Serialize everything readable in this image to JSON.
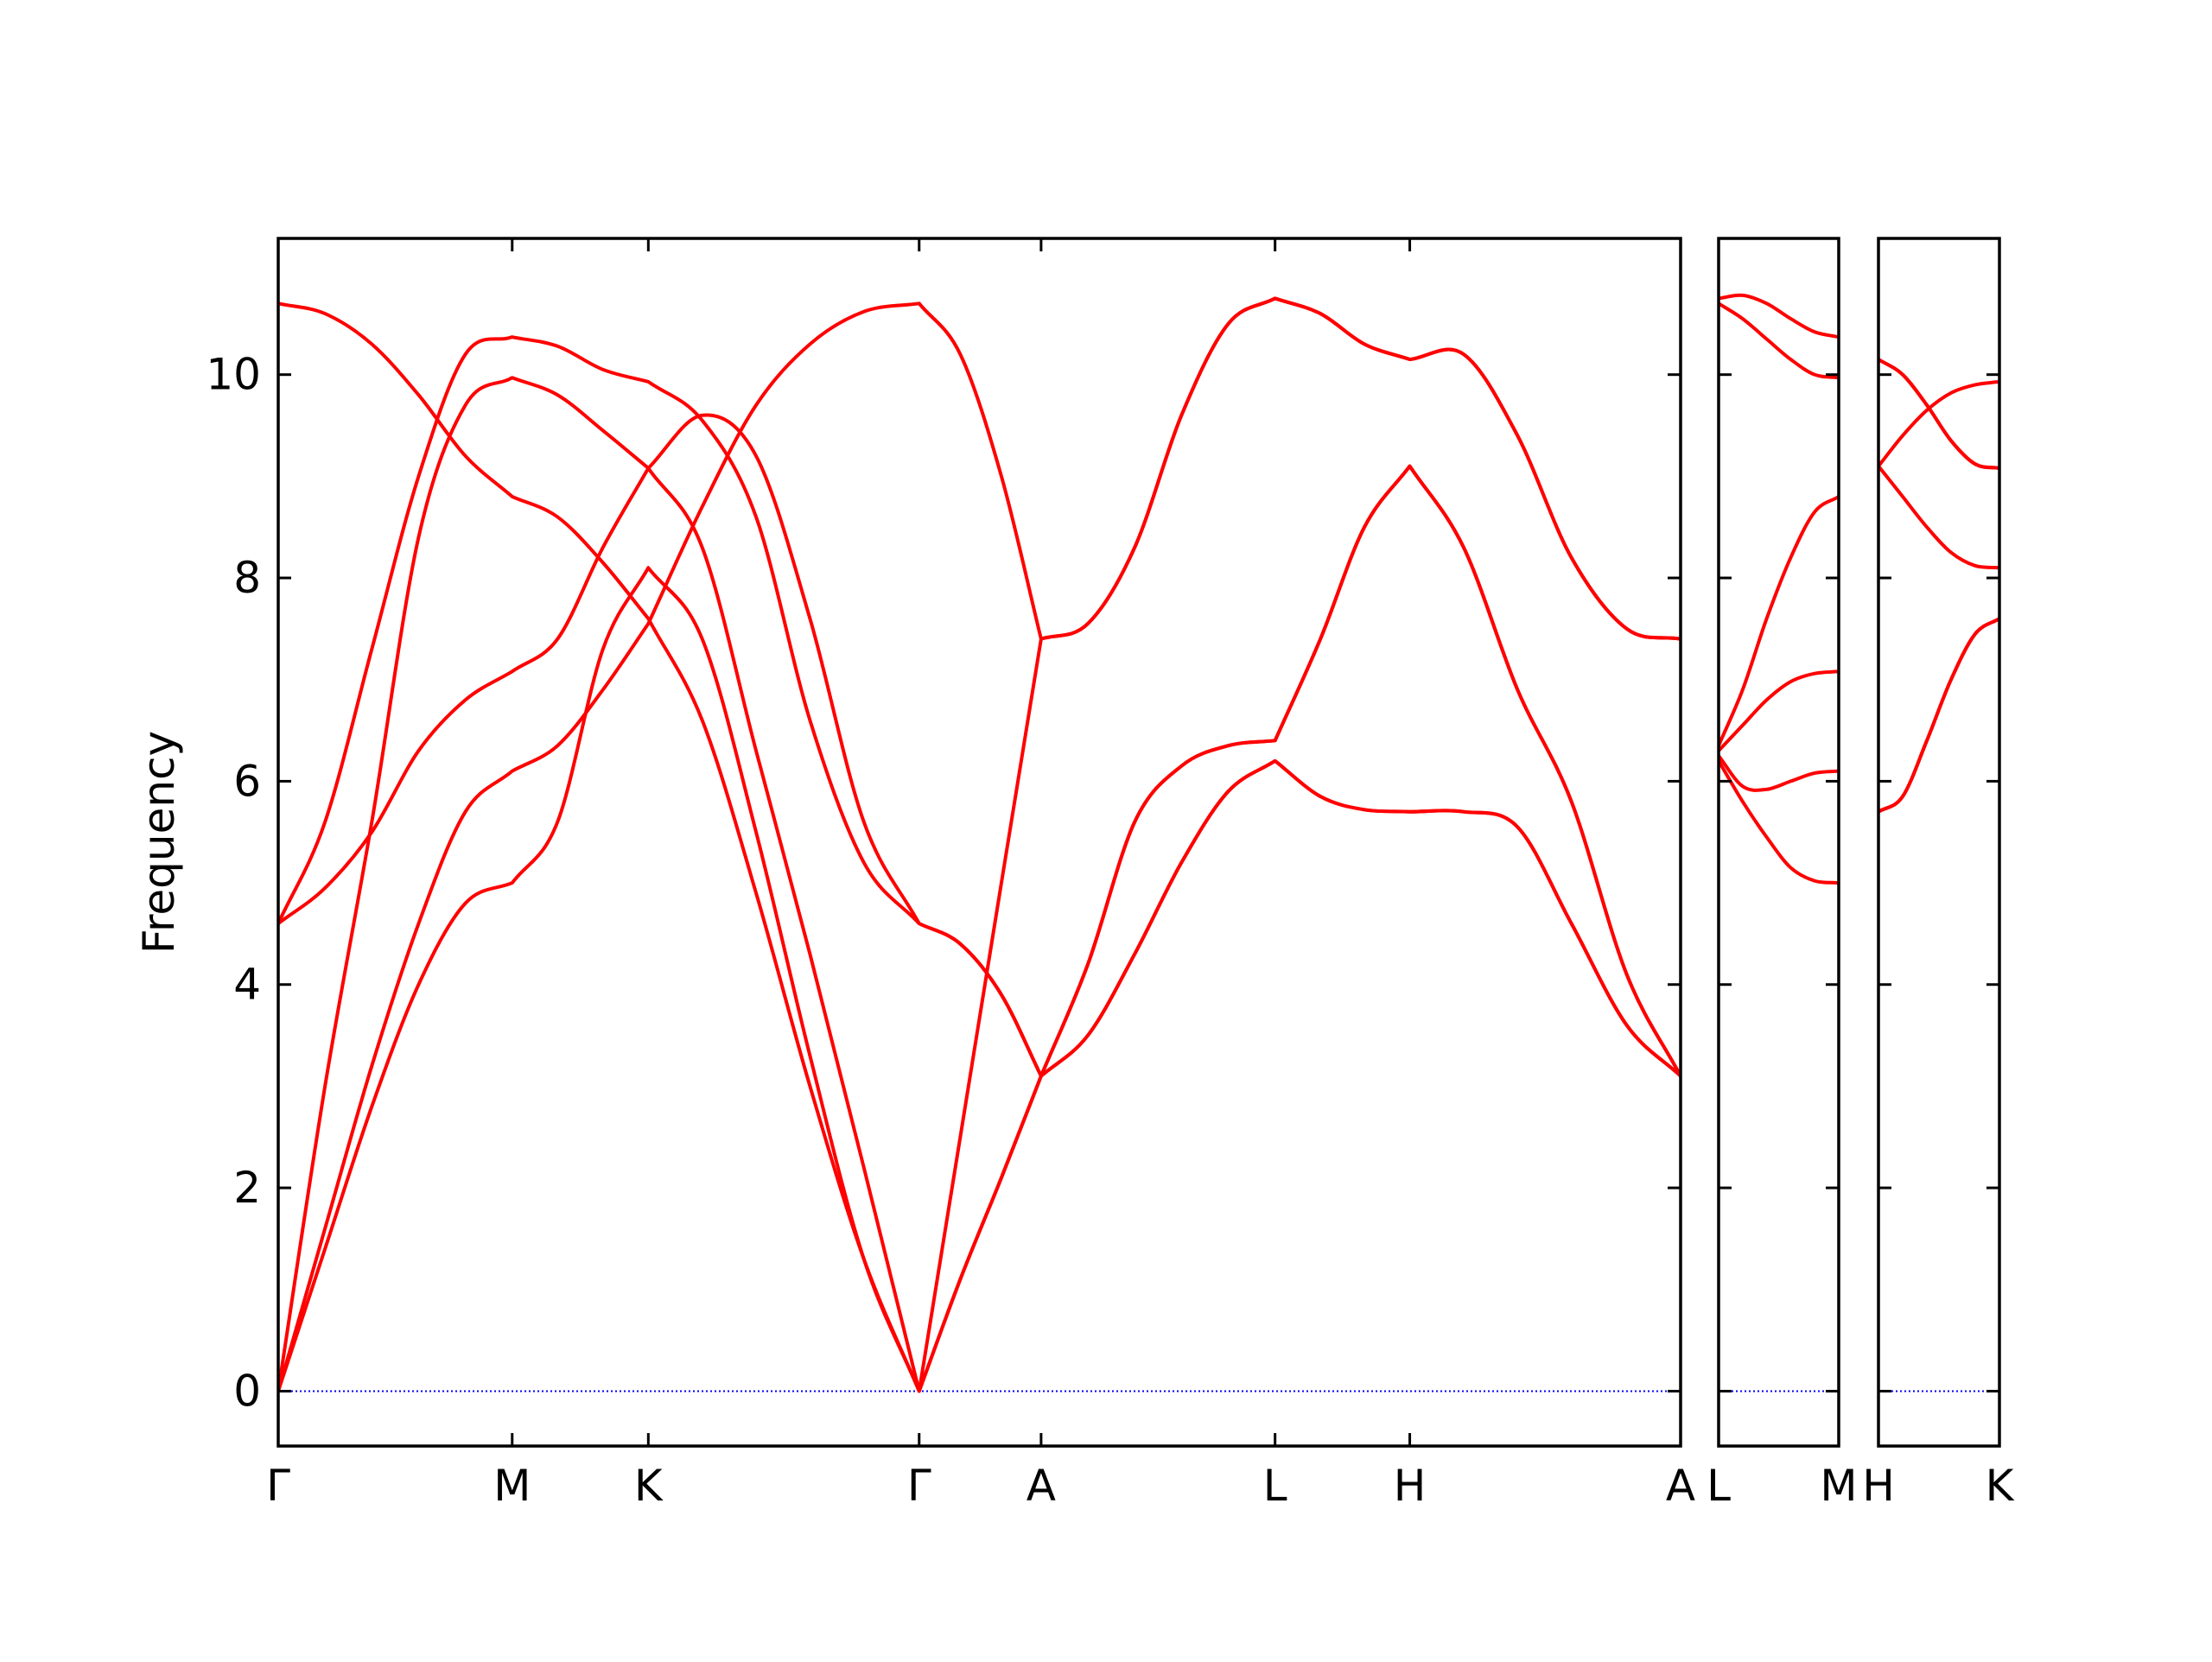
{
  "chart_data": [
    {
      "type": "line",
      "ylabel": "Frequency",
      "show_ytick_labels": true,
      "x": [
        0,
        0.33,
        0.66,
        0.99,
        1.32,
        1.65,
        1.97,
        2.29,
        2.61,
        2.99,
        3.37,
        3.75,
        4.13,
        4.52,
        4.81,
        5.1,
        5.38,
        5.71,
        6.04,
        6.37,
        6.7,
        7.03,
        7.35,
        7.66,
        7.98,
        8.36,
        8.74,
        9.12,
        9.51,
        9.89
      ],
      "xlim": [
        0,
        9.89
      ],
      "xticks": [
        {
          "value": 0,
          "label": "Γ"
        },
        {
          "value": 1.65,
          "label": "M"
        },
        {
          "value": 2.61,
          "label": "K"
        },
        {
          "value": 4.52,
          "label": "Γ"
        },
        {
          "value": 5.38,
          "label": "A"
        },
        {
          "value": 7.03,
          "label": "L"
        },
        {
          "value": 7.98,
          "label": "H"
        },
        {
          "value": 9.89,
          "label": "A"
        }
      ],
      "ylim": [
        -0.54,
        11.34
      ],
      "yticks": [
        0,
        2,
        4,
        6,
        8,
        10
      ],
      "zero_line": 0,
      "zero_line_color": "#0000ff",
      "series": [
        {
          "color": "#ff0000",
          "values": [
            10.7,
            10.6,
            10.3,
            9.8,
            9.2,
            8.8,
            8.6,
            8.15,
            7.6,
            6.6,
            4.9,
            3.0,
            1.3,
            0,
            2.5,
            5.0,
            7.4,
            7.55,
            8.3,
            9.6,
            10.5,
            10.75,
            10.6,
            10.3,
            10.15,
            10.2,
            9.4,
            8.2,
            7.5,
            7.4
          ]
        },
        {
          "color": "#ff0000",
          "values": [
            4.6,
            5.6,
            7.3,
            9.0,
            10.2,
            10.37,
            10.28,
            10.05,
            9.93,
            9.55,
            8.6,
            6.6,
            5.2,
            4.6,
            4.4,
            3.9,
            3.1,
            4.2,
            5.6,
            6.15,
            6.35,
            6.4,
            7.4,
            8.5,
            9.1,
            8.3,
            6.9,
            5.8,
            4.1,
            3.1
          ]
        },
        {
          "color": "#ff0000",
          "values": [
            4.6,
            4.95,
            5.5,
            6.3,
            6.8,
            7.08,
            7.4,
            8.3,
            9.08,
            9.6,
            9.2,
            7.6,
            5.6,
            4.6,
            4.4,
            3.9,
            3.1,
            3.5,
            4.3,
            5.2,
            5.9,
            6.2,
            5.85,
            5.72,
            5.7,
            5.7,
            5.55,
            4.6,
            3.6,
            3.1
          ]
        },
        {
          "color": "#ff0000",
          "values": [
            0,
            3.0,
            5.6,
            8.4,
            9.7,
            9.97,
            9.8,
            9.45,
            9.08,
            8.3,
            6.3,
            4.3,
            2.2,
            0,
            1.1,
            2.1,
            3.1,
            4.2,
            5.6,
            6.15,
            6.35,
            6.4,
            7.4,
            8.5,
            9.1,
            8.3,
            6.9,
            5.8,
            4.1,
            3.1
          ]
        },
        {
          "color": "#ff0000",
          "values": [
            0,
            1.6,
            3.2,
            4.6,
            5.7,
            6.1,
            6.35,
            6.9,
            7.55,
            8.7,
            9.7,
            10.3,
            10.62,
            10.7,
            10.2,
            9.0,
            7.4,
            7.55,
            8.3,
            9.6,
            10.5,
            10.75,
            10.6,
            10.3,
            10.15,
            10.2,
            9.4,
            8.2,
            7.5,
            7.4
          ]
        },
        {
          "color": "#ff0000",
          "values": [
            0,
            1.4,
            2.8,
            4.0,
            4.8,
            5.0,
            5.6,
            7.3,
            8.1,
            7.4,
            5.5,
            3.3,
            1.3,
            0,
            1.1,
            2.1,
            3.1,
            3.5,
            4.3,
            5.2,
            5.9,
            6.2,
            5.85,
            5.72,
            5.7,
            5.7,
            5.55,
            4.6,
            3.6,
            3.1
          ]
        }
      ]
    },
    {
      "type": "line",
      "show_ytick_labels": false,
      "x": [
        0,
        0.17,
        0.34,
        0.51,
        0.68,
        0.85
      ],
      "xlim": [
        0,
        0.85
      ],
      "xticks": [
        {
          "value": 0,
          "label": "L"
        },
        {
          "value": 0.85,
          "label": "M"
        }
      ],
      "ylim": [
        -0.54,
        11.34
      ],
      "yticks": [
        0,
        2,
        4,
        6,
        8,
        10
      ],
      "zero_line": 0,
      "zero_line_color": "#0000ff",
      "series": [
        {
          "color": "#ff0000",
          "values": [
            10.75,
            10.78,
            10.7,
            10.55,
            10.42,
            10.37
          ]
        },
        {
          "color": "#ff0000",
          "values": [
            10.7,
            10.55,
            10.35,
            10.15,
            10.0,
            9.97
          ]
        },
        {
          "color": "#ff0000",
          "values": [
            6.35,
            6.9,
            7.6,
            8.2,
            8.65,
            8.8
          ]
        },
        {
          "color": "#ff0000",
          "values": [
            6.3,
            6.55,
            6.8,
            6.98,
            7.06,
            7.08
          ]
        },
        {
          "color": "#ff0000",
          "values": [
            6.25,
            5.95,
            5.92,
            6.0,
            6.08,
            6.1
          ]
        },
        {
          "color": "#ff0000",
          "values": [
            6.2,
            5.8,
            5.45,
            5.15,
            5.02,
            5.0
          ]
        }
      ]
    },
    {
      "type": "line",
      "show_ytick_labels": false,
      "x": [
        0,
        0.17,
        0.34,
        0.51,
        0.68,
        0.85
      ],
      "xlim": [
        0,
        0.85
      ],
      "xticks": [
        {
          "value": 0,
          "label": "H"
        },
        {
          "value": 0.85,
          "label": "K"
        }
      ],
      "ylim": [
        -0.54,
        11.34
      ],
      "yticks": [
        0,
        2,
        4,
        6,
        8,
        10
      ],
      "zero_line": 0,
      "zero_line_color": "#0000ff",
      "series": [
        {
          "color": "#ff0000",
          "values": [
            10.15,
            10.0,
            9.7,
            9.35,
            9.12,
            9.08
          ]
        },
        {
          "color": "#ff0000",
          "values": [
            10.15,
            10.0,
            9.7,
            9.35,
            9.12,
            9.08
          ]
        },
        {
          "color": "#ff0000",
          "values": [
            9.1,
            9.4,
            9.65,
            9.82,
            9.9,
            9.93
          ]
        },
        {
          "color": "#ff0000",
          "values": [
            9.1,
            8.8,
            8.5,
            8.25,
            8.12,
            8.1
          ]
        },
        {
          "color": "#ff0000",
          "values": [
            5.7,
            5.85,
            6.4,
            7.0,
            7.45,
            7.6
          ]
        },
        {
          "color": "#ff0000",
          "values": [
            5.7,
            5.85,
            6.4,
            7.0,
            7.45,
            7.6
          ]
        }
      ]
    }
  ]
}
